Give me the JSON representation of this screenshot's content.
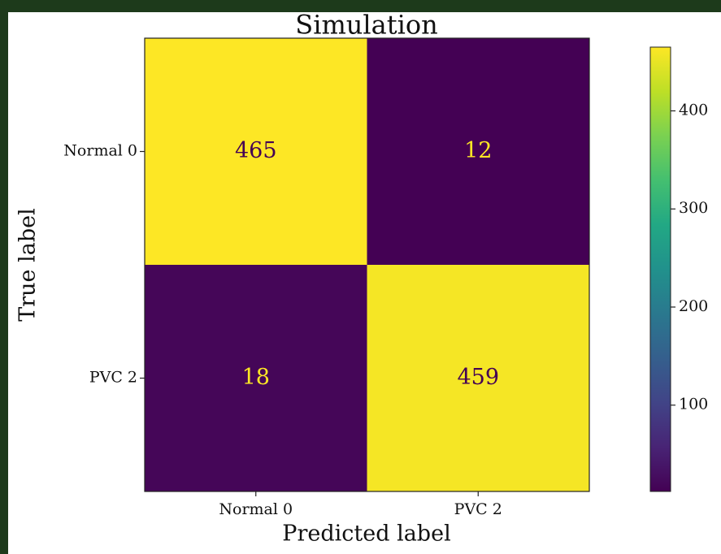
{
  "chart_data": {
    "type": "heatmap",
    "title": "Simulation",
    "xlabel": "Predicted label",
    "ylabel": "True label",
    "x_categories": [
      "Normal 0",
      "PVC 2"
    ],
    "y_categories": [
      "Normal 0",
      "PVC 2"
    ],
    "values": [
      [
        465,
        12
      ],
      [
        18,
        459
      ]
    ],
    "colormap": "viridis",
    "clim": [
      12,
      465
    ],
    "cticks": [
      100,
      200,
      300,
      400
    ]
  }
}
